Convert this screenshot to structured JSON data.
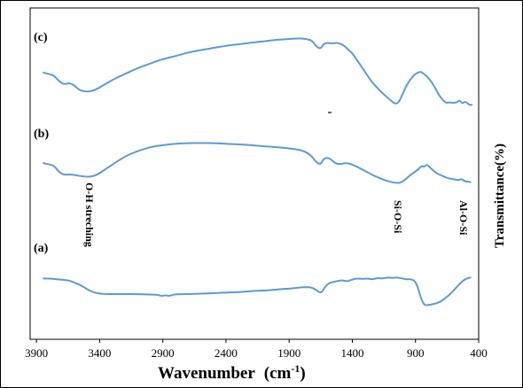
{
  "chart_data": {
    "type": "line",
    "xlabel_main": "Wavenumber",
    "xlabel_unit": "(cm",
    "xlabel_sup": "-1",
    "xlabel_close": ")",
    "ylabel": "Transmittance(%)",
    "x_reversed": true,
    "xlim": [
      3950,
      400
    ],
    "xticks": [
      "3900",
      "3400",
      "2900",
      "2400",
      "1900",
      "1400",
      "900",
      "400"
    ],
    "line_color": "#5b9bd5",
    "series": [
      {
        "name": "(c)",
        "label": "(c)",
        "offset": 0,
        "points": [
          [
            3850,
            0.76
          ],
          [
            3800,
            0.78
          ],
          [
            3760,
            0.8
          ],
          [
            3720,
            0.88
          ],
          [
            3680,
            0.92
          ],
          [
            3640,
            0.9
          ],
          [
            3600,
            0.93
          ],
          [
            3560,
            1.0
          ],
          [
            3500,
            1.02
          ],
          [
            3440,
            1.0
          ],
          [
            3380,
            0.94
          ],
          [
            3300,
            0.86
          ],
          [
            3200,
            0.78
          ],
          [
            3100,
            0.7
          ],
          [
            3000,
            0.64
          ],
          [
            2900,
            0.58
          ],
          [
            2800,
            0.54
          ],
          [
            2700,
            0.49
          ],
          [
            2600,
            0.46
          ],
          [
            2500,
            0.43
          ],
          [
            2400,
            0.4
          ],
          [
            2300,
            0.38
          ],
          [
            2200,
            0.36
          ],
          [
            2100,
            0.34
          ],
          [
            2000,
            0.32
          ],
          [
            1900,
            0.31
          ],
          [
            1820,
            0.3
          ],
          [
            1760,
            0.31
          ],
          [
            1720,
            0.33
          ],
          [
            1680,
            0.42
          ],
          [
            1650,
            0.44
          ],
          [
            1630,
            0.38
          ],
          [
            1600,
            0.36
          ],
          [
            1560,
            0.37
          ],
          [
            1520,
            0.36
          ],
          [
            1480,
            0.38
          ],
          [
            1440,
            0.44
          ],
          [
            1400,
            0.5
          ],
          [
            1360,
            0.6
          ],
          [
            1320,
            0.7
          ],
          [
            1280,
            0.8
          ],
          [
            1240,
            0.9
          ],
          [
            1200,
            0.97
          ],
          [
            1160,
            1.04
          ],
          [
            1120,
            1.1
          ],
          [
            1080,
            1.16
          ],
          [
            1060,
            1.18
          ],
          [
            1040,
            1.17
          ],
          [
            1020,
            1.12
          ],
          [
            1000,
            1.04
          ],
          [
            970,
            0.93
          ],
          [
            940,
            0.85
          ],
          [
            910,
            0.79
          ],
          [
            880,
            0.76
          ],
          [
            860,
            0.75
          ],
          [
            840,
            0.77
          ],
          [
            810,
            0.81
          ],
          [
            780,
            0.87
          ],
          [
            750,
            0.95
          ],
          [
            720,
            1.05
          ],
          [
            690,
            1.12
          ],
          [
            660,
            1.17
          ],
          [
            630,
            1.16
          ],
          [
            600,
            1.17
          ],
          [
            570,
            1.16
          ],
          [
            550,
            1.13
          ],
          [
            530,
            1.18
          ],
          [
            510,
            1.15
          ],
          [
            490,
            1.17
          ],
          [
            470,
            1.2
          ],
          [
            450,
            1.19
          ]
        ]
      },
      {
        "name": "(b)",
        "label": "(b)",
        "offset": 1,
        "points": [
          [
            3850,
            0.72
          ],
          [
            3800,
            0.74
          ],
          [
            3760,
            0.76
          ],
          [
            3720,
            0.86
          ],
          [
            3680,
            0.9
          ],
          [
            3640,
            0.89
          ],
          [
            3600,
            0.9
          ],
          [
            3540,
            0.92
          ],
          [
            3480,
            0.93
          ],
          [
            3420,
            0.9
          ],
          [
            3360,
            0.82
          ],
          [
            3280,
            0.72
          ],
          [
            3200,
            0.62
          ],
          [
            3100,
            0.54
          ],
          [
            3000,
            0.48
          ],
          [
            2900,
            0.45
          ],
          [
            2800,
            0.43
          ],
          [
            2700,
            0.42
          ],
          [
            2600,
            0.42
          ],
          [
            2500,
            0.42
          ],
          [
            2400,
            0.43
          ],
          [
            2300,
            0.44
          ],
          [
            2200,
            0.45
          ],
          [
            2100,
            0.47
          ],
          [
            2000,
            0.48
          ],
          [
            1900,
            0.5
          ],
          [
            1820,
            0.52
          ],
          [
            1760,
            0.56
          ],
          [
            1720,
            0.62
          ],
          [
            1680,
            0.72
          ],
          [
            1650,
            0.74
          ],
          [
            1630,
            0.66
          ],
          [
            1600,
            0.64
          ],
          [
            1570,
            0.66
          ],
          [
            1540,
            0.72
          ],
          [
            1500,
            0.74
          ],
          [
            1460,
            0.72
          ],
          [
            1420,
            0.73
          ],
          [
            1380,
            0.76
          ],
          [
            1340,
            0.8
          ],
          [
            1300,
            0.84
          ],
          [
            1260,
            0.88
          ],
          [
            1220,
            0.92
          ],
          [
            1180,
            0.95
          ],
          [
            1140,
            0.98
          ],
          [
            1100,
            1.0
          ],
          [
            1060,
            1.02
          ],
          [
            1030,
            1.02
          ],
          [
            1000,
            1.0
          ],
          [
            970,
            0.95
          ],
          [
            940,
            0.9
          ],
          [
            910,
            0.86
          ],
          [
            880,
            0.82
          ],
          [
            850,
            0.76
          ],
          [
            830,
            0.78
          ],
          [
            810,
            0.74
          ],
          [
            790,
            0.78
          ],
          [
            760,
            0.83
          ],
          [
            730,
            0.88
          ],
          [
            700,
            0.9
          ],
          [
            670,
            0.93
          ],
          [
            640,
            0.95
          ],
          [
            610,
            0.96
          ],
          [
            580,
            0.97
          ],
          [
            560,
            0.98
          ],
          [
            540,
            0.96
          ],
          [
            520,
            0.98
          ],
          [
            500,
            1.0
          ],
          [
            480,
            1.0
          ],
          [
            460,
            1.01
          ]
        ]
      },
      {
        "name": "(a)",
        "label": "(a)",
        "offset": 2,
        "points": [
          [
            3850,
            0.48
          ],
          [
            3800,
            0.48
          ],
          [
            3760,
            0.49
          ],
          [
            3720,
            0.5
          ],
          [
            3680,
            0.51
          ],
          [
            3640,
            0.52
          ],
          [
            3600,
            0.56
          ],
          [
            3560,
            0.6
          ],
          [
            3520,
            0.66
          ],
          [
            3480,
            0.72
          ],
          [
            3440,
            0.76
          ],
          [
            3400,
            0.78
          ],
          [
            3340,
            0.79
          ],
          [
            3280,
            0.79
          ],
          [
            3200,
            0.79
          ],
          [
            3100,
            0.79
          ],
          [
            3000,
            0.8
          ],
          [
            2940,
            0.8
          ],
          [
            2910,
            0.83
          ],
          [
            2880,
            0.81
          ],
          [
            2850,
            0.83
          ],
          [
            2820,
            0.8
          ],
          [
            2760,
            0.79
          ],
          [
            2700,
            0.79
          ],
          [
            2600,
            0.78
          ],
          [
            2500,
            0.77
          ],
          [
            2400,
            0.76
          ],
          [
            2300,
            0.75
          ],
          [
            2200,
            0.73
          ],
          [
            2100,
            0.72
          ],
          [
            2000,
            0.7
          ],
          [
            1900,
            0.68
          ],
          [
            1820,
            0.66
          ],
          [
            1760,
            0.65
          ],
          [
            1720,
            0.66
          ],
          [
            1690,
            0.7
          ],
          [
            1660,
            0.76
          ],
          [
            1640,
            0.75
          ],
          [
            1620,
            0.66
          ],
          [
            1590,
            0.58
          ],
          [
            1560,
            0.55
          ],
          [
            1530,
            0.54
          ],
          [
            1500,
            0.52
          ],
          [
            1470,
            0.52
          ],
          [
            1440,
            0.54
          ],
          [
            1400,
            0.5
          ],
          [
            1360,
            0.48
          ],
          [
            1320,
            0.49
          ],
          [
            1280,
            0.48
          ],
          [
            1240,
            0.5
          ],
          [
            1200,
            0.47
          ],
          [
            1160,
            0.48
          ],
          [
            1120,
            0.46
          ],
          [
            1080,
            0.47
          ],
          [
            1040,
            0.46
          ],
          [
            1000,
            0.48
          ],
          [
            970,
            0.5
          ],
          [
            940,
            0.49
          ],
          [
            910,
            0.52
          ],
          [
            890,
            0.6
          ],
          [
            870,
            0.75
          ],
          [
            850,
            0.92
          ],
          [
            830,
            1.0
          ],
          [
            810,
            1.01
          ],
          [
            780,
            1.0
          ],
          [
            750,
            0.98
          ],
          [
            720,
            0.96
          ],
          [
            690,
            0.92
          ],
          [
            660,
            0.86
          ],
          [
            630,
            0.8
          ],
          [
            600,
            0.72
          ],
          [
            570,
            0.64
          ],
          [
            540,
            0.56
          ],
          [
            510,
            0.5
          ],
          [
            480,
            0.47
          ],
          [
            460,
            0.46
          ]
        ]
      }
    ],
    "annotations": [
      {
        "text": "O-H streching",
        "x": 3480
      },
      {
        "text": "Si-O-Si",
        "x": 1040
      },
      {
        "text": "Al-O-Si",
        "x": 520
      }
    ]
  }
}
